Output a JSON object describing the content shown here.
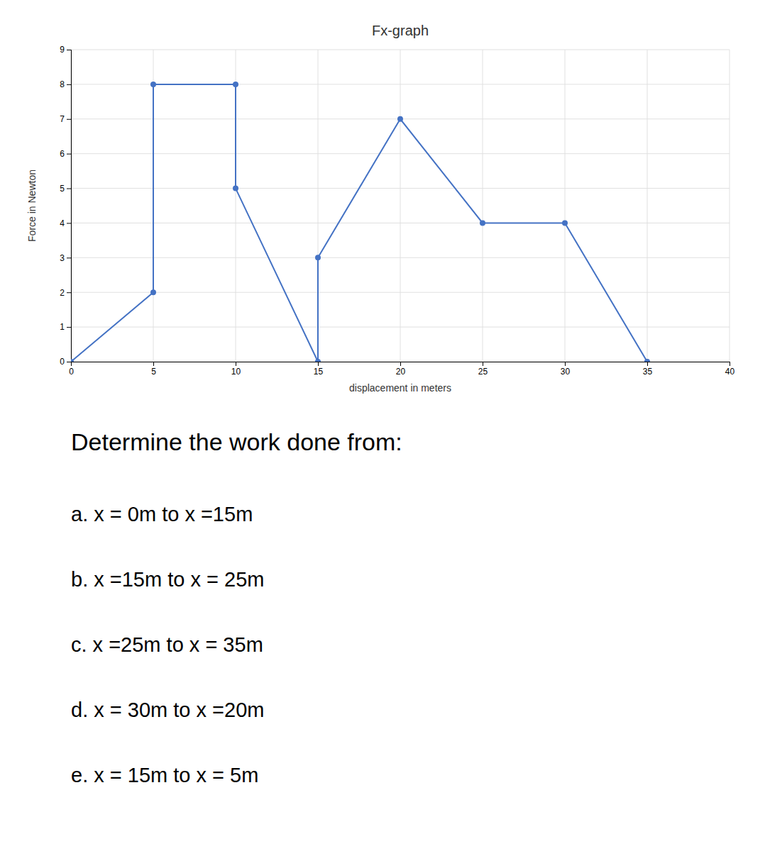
{
  "chart_data": {
    "type": "line",
    "title": "Fx-graph",
    "xlabel": "displacement in meters",
    "ylabel": "Force in Newton",
    "x": [
      0,
      5,
      5,
      10,
      10,
      15,
      15,
      20,
      25,
      30,
      35
    ],
    "values": [
      0,
      2,
      8,
      8,
      5,
      0,
      3,
      7,
      4,
      4,
      0
    ],
    "color": "#4472C4",
    "marker": "circle",
    "xlim": [
      0,
      40
    ],
    "ylim": [
      0,
      9
    ],
    "xticks": [
      0,
      5,
      10,
      15,
      20,
      25,
      30,
      35,
      40
    ],
    "yticks": [
      0,
      1,
      2,
      3,
      4,
      5,
      6,
      7,
      8,
      9
    ],
    "grid": true,
    "annotations": [
      "Determine the work done from:",
      "a. x = 0m to x =15m",
      "b. x =15m to x = 25m",
      "c. x =25m to x = 35m",
      "d. x = 30m to x =20m",
      "e. x = 15m to x = 5m"
    ]
  }
}
